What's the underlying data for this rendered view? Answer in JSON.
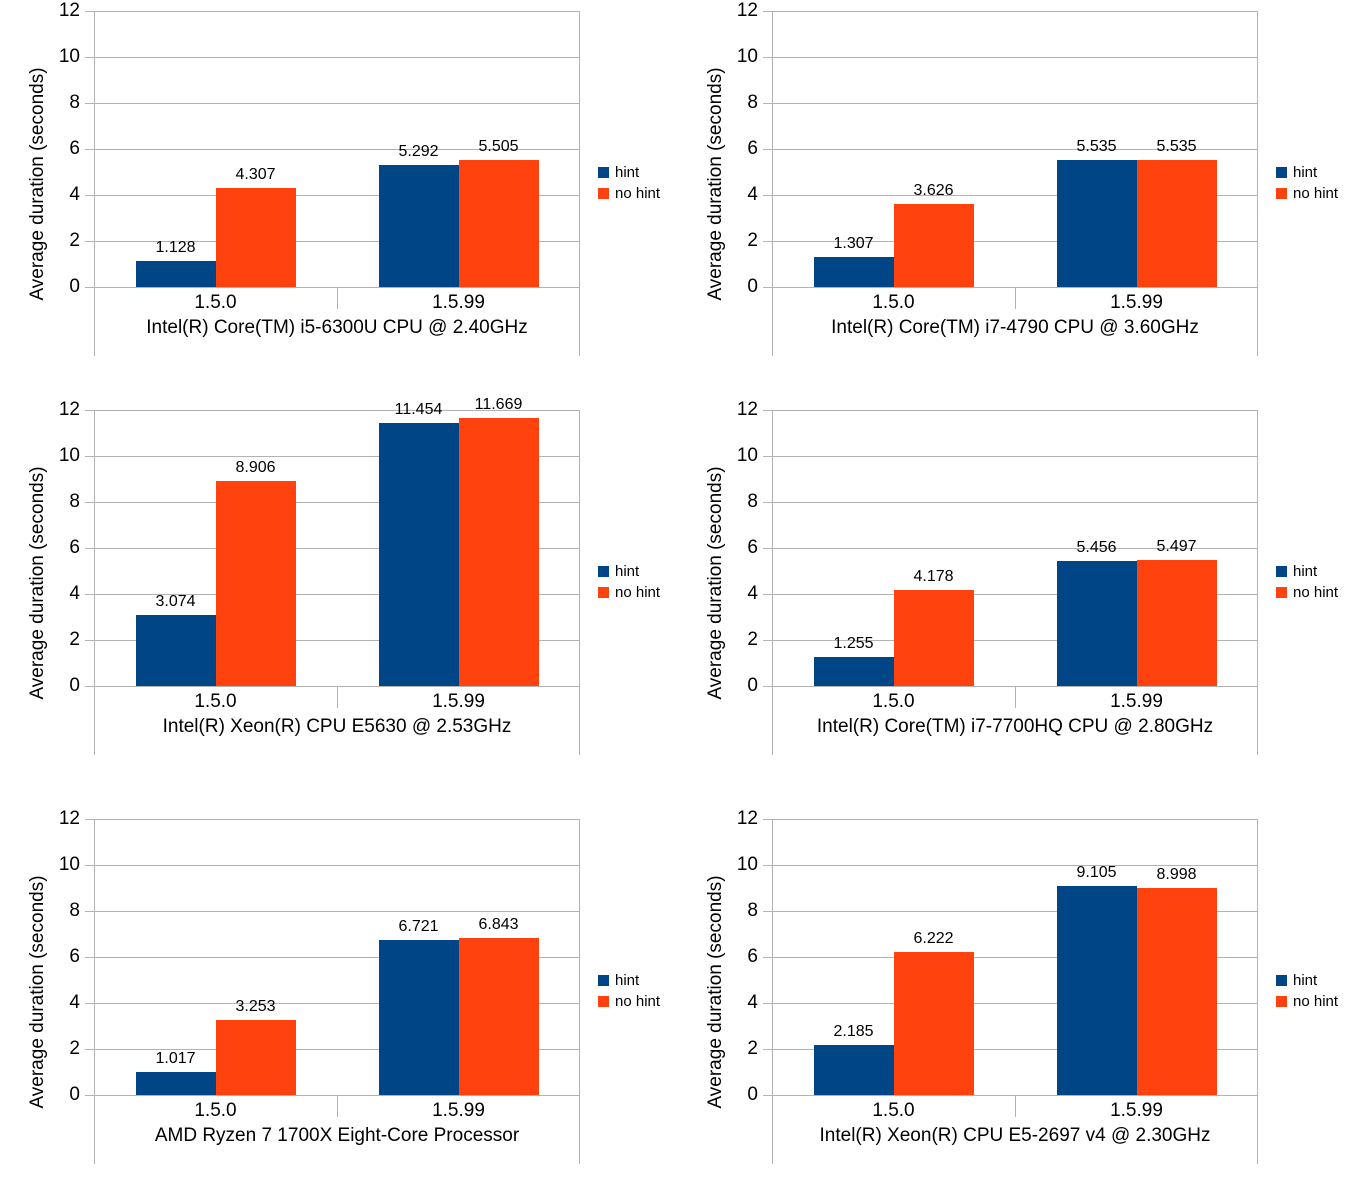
{
  "figure": {
    "background": "#ffffff",
    "grid_color": "#b3b3b3",
    "text_color": "#000000",
    "series_colors": {
      "hint": "#004586",
      "no_hint": "#FF420E"
    }
  },
  "chart_data": [
    {
      "type": "bar",
      "title": "Intel(R) Core(TM) i5-6300U CPU @ 2.40GHz",
      "categories": [
        "1.5.0",
        "1.5.99"
      ],
      "ylabel": "Average duration (seconds)",
      "ylim": [
        0,
        12
      ],
      "yticks": [
        "0",
        "2",
        "4",
        "6",
        "8",
        "10",
        "12"
      ],
      "grid": true,
      "legend_position": "right",
      "series": [
        {
          "name": "hint",
          "color": "#004586",
          "values": [
            1.128,
            5.292
          ],
          "value_labels": [
            "1.128",
            "5.292"
          ]
        },
        {
          "name": "no hint",
          "color": "#FF420E",
          "values": [
            4.307,
            5.505
          ],
          "value_labels": [
            "4.307",
            "5.505"
          ]
        }
      ]
    },
    {
      "type": "bar",
      "title": "Intel(R) Core(TM) i7-4790 CPU @ 3.60GHz",
      "categories": [
        "1.5.0",
        "1.5.99"
      ],
      "ylabel": "Average duration (seconds)",
      "ylim": [
        0,
        12
      ],
      "yticks": [
        "0",
        "2",
        "4",
        "6",
        "8",
        "10",
        "12"
      ],
      "grid": true,
      "legend_position": "right",
      "series": [
        {
          "name": "hint",
          "color": "#004586",
          "values": [
            1.307,
            5.535
          ],
          "value_labels": [
            "1.307",
            "5.535"
          ]
        },
        {
          "name": "no hint",
          "color": "#FF420E",
          "values": [
            3.626,
            5.535
          ],
          "value_labels": [
            "3.626",
            "5.535"
          ]
        }
      ]
    },
    {
      "type": "bar",
      "title": "Intel(R) Xeon(R) CPU E5630 @ 2.53GHz",
      "categories": [
        "1.5.0",
        "1.5.99"
      ],
      "ylabel": "Average duration (seconds)",
      "ylim": [
        0,
        12
      ],
      "yticks": [
        "0",
        "2",
        "4",
        "6",
        "8",
        "10",
        "12"
      ],
      "grid": true,
      "legend_position": "right",
      "series": [
        {
          "name": "hint",
          "color": "#004586",
          "values": [
            3.074,
            11.454
          ],
          "value_labels": [
            "3.074",
            "11.454"
          ]
        },
        {
          "name": "no hint",
          "color": "#FF420E",
          "values": [
            8.906,
            11.669
          ],
          "value_labels": [
            "8.906",
            "11.669"
          ]
        }
      ]
    },
    {
      "type": "bar",
      "title": "Intel(R) Core(TM) i7-7700HQ CPU @ 2.80GHz",
      "categories": [
        "1.5.0",
        "1.5.99"
      ],
      "ylabel": "Average duration (seconds)",
      "ylim": [
        0,
        12
      ],
      "yticks": [
        "0",
        "2",
        "4",
        "6",
        "8",
        "10",
        "12"
      ],
      "grid": true,
      "legend_position": "right",
      "series": [
        {
          "name": "hint",
          "color": "#004586",
          "values": [
            1.255,
            5.456
          ],
          "value_labels": [
            "1.255",
            "5.456"
          ]
        },
        {
          "name": "no hint",
          "color": "#FF420E",
          "values": [
            4.178,
            5.497
          ],
          "value_labels": [
            "4.178",
            "5.497"
          ]
        }
      ]
    },
    {
      "type": "bar",
      "title": "AMD Ryzen 7 1700X Eight-Core Processor",
      "categories": [
        "1.5.0",
        "1.5.99"
      ],
      "ylabel": "Average duration (seconds)",
      "ylim": [
        0,
        12
      ],
      "yticks": [
        "0",
        "2",
        "4",
        "6",
        "8",
        "10",
        "12"
      ],
      "grid": true,
      "legend_position": "right",
      "series": [
        {
          "name": "hint",
          "color": "#004586",
          "values": [
            1.017,
            6.721
          ],
          "value_labels": [
            "1.017",
            "6.721"
          ]
        },
        {
          "name": "no hint",
          "color": "#FF420E",
          "values": [
            3.253,
            6.843
          ],
          "value_labels": [
            "3.253",
            "6.843"
          ]
        }
      ]
    },
    {
      "type": "bar",
      "title": "Intel(R) Xeon(R) CPU E5-2697 v4 @ 2.30GHz",
      "categories": [
        "1.5.0",
        "1.5.99"
      ],
      "ylabel": "Average duration (seconds)",
      "ylim": [
        0,
        12
      ],
      "yticks": [
        "0",
        "2",
        "4",
        "6",
        "8",
        "10",
        "12"
      ],
      "grid": true,
      "legend_position": "right",
      "series": [
        {
          "name": "hint",
          "color": "#004586",
          "values": [
            2.185,
            9.105
          ],
          "value_labels": [
            "2.185",
            "9.105"
          ]
        },
        {
          "name": "no hint",
          "color": "#FF420E",
          "values": [
            6.222,
            8.998
          ],
          "value_labels": [
            "6.222",
            "8.998"
          ]
        }
      ]
    }
  ]
}
